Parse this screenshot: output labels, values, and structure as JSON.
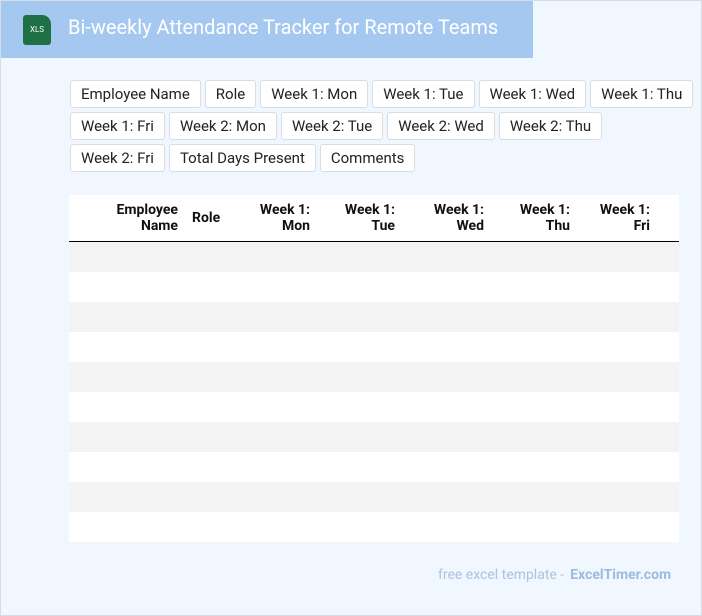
{
  "header": {
    "icon": "XLS",
    "title": "Bi-weekly Attendance Tracker for Remote Teams"
  },
  "tags": [
    "Employee Name",
    "Role",
    "Week 1: Mon",
    "Week 1: Tue",
    "Week 1: Wed",
    "Week 1: Thu",
    "Week 1: Fri",
    "Week 2: Mon",
    "Week 2: Tue",
    "Week 2: Wed",
    "Week 2: Thu",
    "Week 2: Fri",
    "Total Days Present",
    "Comments"
  ],
  "table": {
    "headers": [
      "Employee Name",
      "Role",
      "Week 1: Mon",
      "Week 1: Tue",
      "Week 1: Wed",
      "Week 1: Thu",
      "Week 1: Fri"
    ]
  },
  "footer": {
    "text": "free excel template -",
    "link": "ExcelTimer.com"
  }
}
